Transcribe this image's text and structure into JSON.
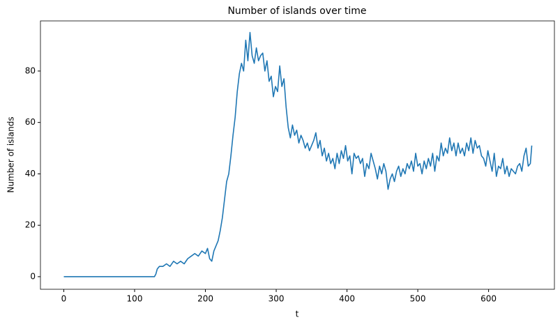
{
  "chart_data": {
    "type": "line",
    "title": "Number of islands over time",
    "x_label": "t",
    "y_label": "Number of islands",
    "x": [
      0,
      128,
      130,
      132,
      135,
      140,
      145,
      150,
      155,
      160,
      165,
      170,
      175,
      180,
      185,
      190,
      195,
      200,
      203,
      206,
      209,
      212,
      215,
      218,
      221,
      224,
      227,
      230,
      233,
      236,
      239,
      242,
      245,
      248,
      251,
      254,
      257,
      260,
      263,
      266,
      269,
      272,
      275,
      278,
      281,
      284,
      287,
      290,
      293,
      296,
      299,
      302,
      305,
      308,
      311,
      314,
      317,
      320,
      323,
      326,
      329,
      332,
      335,
      338,
      341,
      344,
      347,
      350,
      353,
      356,
      359,
      362,
      365,
      368,
      371,
      374,
      377,
      380,
      383,
      386,
      389,
      392,
      395,
      398,
      401,
      404,
      407,
      410,
      413,
      416,
      419,
      422,
      425,
      428,
      431,
      434,
      437,
      440,
      443,
      446,
      449,
      452,
      455,
      458,
      461,
      464,
      467,
      470,
      473,
      476,
      479,
      482,
      485,
      488,
      491,
      494,
      497,
      500,
      503,
      506,
      509,
      512,
      515,
      518,
      521,
      524,
      527,
      530,
      533,
      536,
      539,
      542,
      545,
      548,
      551,
      554,
      557,
      560,
      563,
      566,
      569,
      572,
      575,
      578,
      581,
      584,
      587,
      590,
      593,
      596,
      599,
      602,
      605,
      608,
      611,
      614,
      617,
      620,
      623,
      626,
      629,
      632,
      635,
      638,
      641,
      644,
      647,
      650,
      653,
      656,
      659,
      661
    ],
    "series": [
      {
        "name": "islands",
        "color": "#1f77b4",
        "values": [
          0,
          0,
          1,
          3,
          4,
          4,
          5,
          4,
          6,
          5,
          6,
          5,
          7,
          8,
          9,
          8,
          10,
          9,
          11,
          7,
          6,
          10,
          12,
          14,
          18,
          23,
          30,
          37,
          40,
          47,
          55,
          62,
          72,
          79,
          83,
          80,
          92,
          84,
          95,
          86,
          83,
          89,
          84,
          86,
          87,
          80,
          84,
          76,
          78,
          70,
          74,
          72,
          82,
          74,
          77,
          66,
          58,
          54,
          59,
          55,
          57,
          52,
          55,
          53,
          50,
          52,
          49,
          51,
          53,
          56,
          50,
          53,
          47,
          50,
          45,
          48,
          44,
          46,
          42,
          48,
          44,
          49,
          46,
          51,
          45,
          47,
          40,
          48,
          46,
          47,
          44,
          46,
          39,
          44,
          42,
          48,
          45,
          42,
          38,
          43,
          40,
          44,
          41,
          34,
          38,
          40,
          37,
          41,
          43,
          39,
          42,
          40,
          44,
          42,
          45,
          41,
          48,
          43,
          44,
          40,
          45,
          42,
          46,
          43,
          48,
          41,
          47,
          45,
          52,
          47,
          50,
          48,
          54,
          49,
          52,
          47,
          52,
          48,
          50,
          47,
          52,
          49,
          54,
          48,
          53,
          50,
          51,
          47,
          46,
          43,
          49,
          45,
          41,
          48,
          39,
          43,
          42,
          46,
          40,
          43,
          39,
          42,
          41,
          40,
          43,
          44,
          41,
          47,
          50,
          43,
          44,
          51
        ]
      }
    ],
    "xlim": [
      -33,
      693
    ],
    "ylim": [
      -4.9,
      99.5
    ],
    "xticks": [
      0,
      100,
      200,
      300,
      400,
      500,
      600
    ],
    "yticks": [
      0,
      20,
      40,
      60,
      80
    ]
  }
}
